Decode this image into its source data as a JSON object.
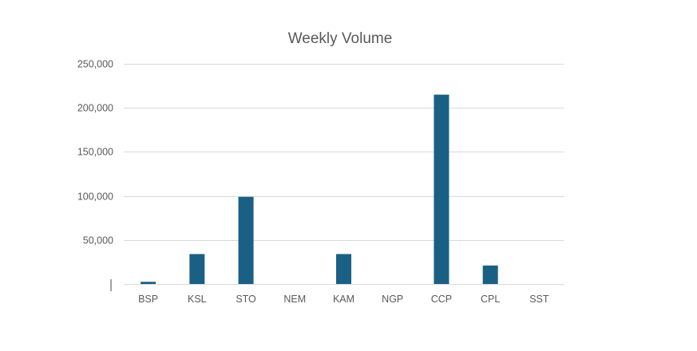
{
  "chart_data": {
    "type": "bar",
    "title": "Weekly Volume",
    "xlabel": "",
    "ylabel": "",
    "categories": [
      "BSP",
      "KSL",
      "STO",
      "NEM",
      "KAM",
      "NGP",
      "CCP",
      "CPL",
      "SST"
    ],
    "values": [
      2500,
      34000,
      99000,
      0,
      34000,
      0,
      215000,
      21000,
      0
    ],
    "ylim": [
      0,
      250000
    ],
    "yticks": [
      50000,
      100000,
      150000,
      200000,
      250000
    ],
    "ytick_labels": [
      "50,000",
      "100,000",
      "150,000",
      "200,000",
      "250,000"
    ],
    "grid": true,
    "legend": "none",
    "bar_color": "#1a6084",
    "grid_color": "#d9d9d9",
    "text_color": "#595959"
  }
}
